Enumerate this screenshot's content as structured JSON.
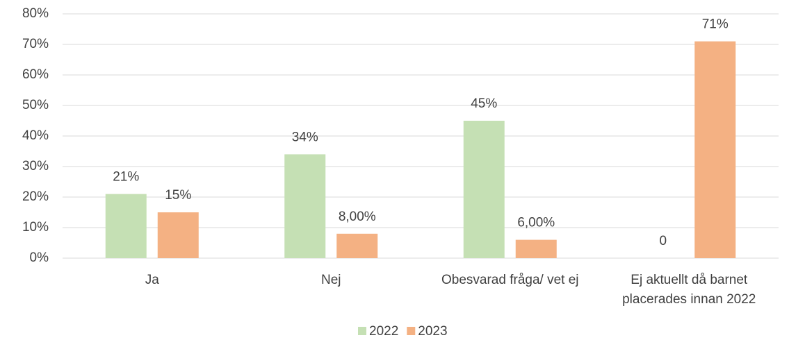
{
  "chart_data": {
    "type": "bar",
    "categories": [
      "Ja",
      "Nej",
      "Obesvarad fråga/ vet ej",
      "Ej aktuellt då barnet placerades innan 2022"
    ],
    "series": [
      {
        "name": "2022",
        "color": "#c5e0b4",
        "values": [
          21,
          34,
          45,
          0
        ],
        "value_labels": [
          "21%",
          "34%",
          "45%",
          "0"
        ]
      },
      {
        "name": "2023",
        "color": "#f4b183",
        "values": [
          15,
          8,
          6,
          71
        ],
        "value_labels": [
          "15%",
          "8,00%",
          "6,00%",
          "71%"
        ]
      }
    ],
    "ylim": [
      0,
      80
    ],
    "yticks": [
      {
        "value": 0,
        "label": "0%"
      },
      {
        "value": 10,
        "label": "10%"
      },
      {
        "value": 20,
        "label": "20%"
      },
      {
        "value": 30,
        "label": "30%"
      },
      {
        "value": 40,
        "label": "40%"
      },
      {
        "value": 50,
        "label": "50%"
      },
      {
        "value": 60,
        "label": "60%"
      },
      {
        "value": 70,
        "label": "70%"
      },
      {
        "value": 80,
        "label": "80%"
      }
    ],
    "grid": true,
    "legend": "bottom"
  }
}
